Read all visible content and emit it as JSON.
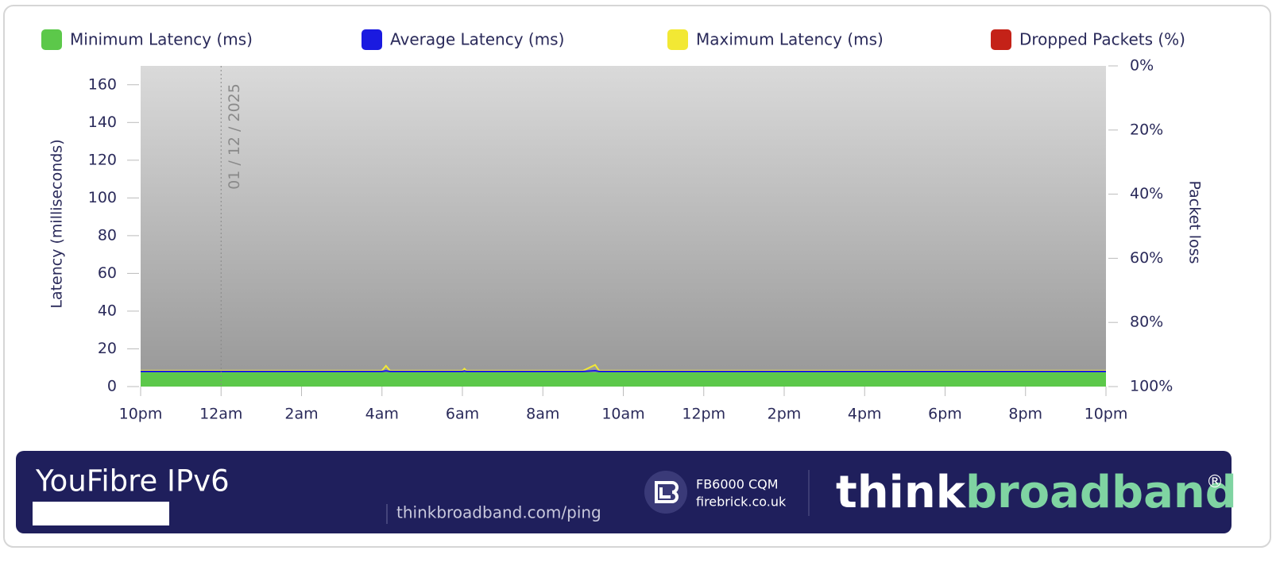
{
  "chart_data": {
    "type": "area-line",
    "legend_position": "top",
    "ylabel": "Latency  (milliseconds)",
    "y2label": "Packet loss",
    "x": [
      0,
      1,
      2,
      3,
      4,
      5,
      6,
      6.1,
      6.2,
      7,
      8,
      8.05,
      8.1,
      9,
      10,
      11,
      11.3,
      11.4,
      12,
      13,
      14,
      15,
      16,
      17,
      18,
      19,
      20,
      21,
      22,
      23,
      24
    ],
    "xlim": [
      0,
      24
    ],
    "xticks": [
      {
        "value": 0,
        "label": "10pm"
      },
      {
        "value": 2,
        "label": "12am"
      },
      {
        "value": 4,
        "label": "2am"
      },
      {
        "value": 6,
        "label": "4am"
      },
      {
        "value": 8,
        "label": "6am"
      },
      {
        "value": 10,
        "label": "8am"
      },
      {
        "value": 12,
        "label": "10am"
      },
      {
        "value": 14,
        "label": "12pm"
      },
      {
        "value": 16,
        "label": "2pm"
      },
      {
        "value": 18,
        "label": "4pm"
      },
      {
        "value": 20,
        "label": "6pm"
      },
      {
        "value": 22,
        "label": "8pm"
      },
      {
        "value": 24,
        "label": "10pm"
      }
    ],
    "ylim": [
      0,
      170
    ],
    "yticks": [
      0,
      20,
      40,
      60,
      80,
      100,
      120,
      140,
      160
    ],
    "y2lim": [
      100,
      0
    ],
    "y2ticks": [
      {
        "value": 0,
        "label": "0%"
      },
      {
        "value": 20,
        "label": "20%"
      },
      {
        "value": 40,
        "label": "40%"
      },
      {
        "value": 60,
        "label": "60%"
      },
      {
        "value": 80,
        "label": "80%"
      },
      {
        "value": 100,
        "label": "100%"
      }
    ],
    "series": [
      {
        "name": "Minimum Latency (ms)",
        "color": "#5cc84a",
        "style": "area",
        "values": [
          7.5,
          7.5,
          7.5,
          7.5,
          7.5,
          7.5,
          7.5,
          7.5,
          7.5,
          7.5,
          7.5,
          7.5,
          7.5,
          7.5,
          7.5,
          7.5,
          7.5,
          7.5,
          7.5,
          7.5,
          7.5,
          7.5,
          7.5,
          7.5,
          7.5,
          7.5,
          7.5,
          7.5,
          7.5,
          7.5,
          7.5
        ]
      },
      {
        "name": "Average Latency (ms)",
        "color": "#1a1ae0",
        "style": "line",
        "values": [
          8,
          8,
          8,
          8,
          8,
          8,
          8,
          8.3,
          8,
          8,
          8,
          8.2,
          8,
          8,
          8,
          8,
          8.4,
          8,
          8,
          8,
          8,
          8,
          8,
          8,
          8,
          8,
          8,
          8,
          8,
          8,
          8
        ]
      },
      {
        "name": "Maximum Latency (ms)",
        "color": "#f2e834",
        "style": "line",
        "values": [
          8.4,
          8.4,
          8.4,
          8.4,
          8.4,
          8.4,
          8.4,
          11,
          8.4,
          8.4,
          8.4,
          9.5,
          8.4,
          8.4,
          8.4,
          8.4,
          11.5,
          8.4,
          8.4,
          8.4,
          8.4,
          8.4,
          8.4,
          8.4,
          8.4,
          8.4,
          8.4,
          8.4,
          8.4,
          8.4,
          8.4
        ]
      },
      {
        "name": "Dropped Packets (%)",
        "color": "#c42218",
        "style": "drop",
        "axis": "y2",
        "values": [
          0,
          0,
          0,
          0,
          0,
          0,
          0,
          0,
          0,
          0,
          0,
          0,
          0,
          0,
          0,
          0,
          0,
          0,
          0,
          0,
          0,
          0,
          0,
          0,
          0,
          0,
          0,
          0,
          0,
          0,
          0
        ]
      }
    ],
    "annotations": [
      {
        "x": 2,
        "text": "01 / 12 / 2025"
      }
    ]
  },
  "footer": {
    "title": "YouFibre IPv6",
    "url": "thinkbroadband.com/ping",
    "sponsor_line1": "FB6000 CQM",
    "sponsor_line2": "firebrick.co.uk",
    "brand_think": "think",
    "brand_broadband": "broadband",
    "brand_mark": "®"
  }
}
